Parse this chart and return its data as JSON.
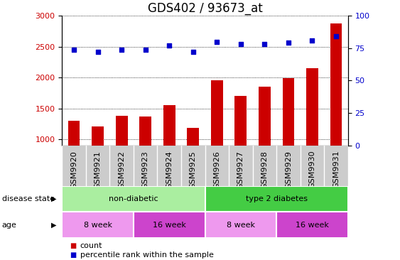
{
  "title": "GDS402 / 93673_at",
  "samples": [
    "GSM9920",
    "GSM9921",
    "GSM9922",
    "GSM9923",
    "GSM9924",
    "GSM9925",
    "GSM9926",
    "GSM9927",
    "GSM9928",
    "GSM9929",
    "GSM9930",
    "GSM9931"
  ],
  "counts": [
    1300,
    1210,
    1380,
    1365,
    1555,
    1185,
    1950,
    1700,
    1855,
    1990,
    2155,
    2870
  ],
  "percentiles": [
    74,
    72,
    74,
    74,
    77,
    72,
    80,
    78,
    78,
    79,
    81,
    84
  ],
  "ylim_left": [
    900,
    3000
  ],
  "ylim_right": [
    0,
    100
  ],
  "yticks_left": [
    1000,
    1500,
    2000,
    2500,
    3000
  ],
  "yticks_right": [
    0,
    25,
    50,
    75,
    100
  ],
  "bar_color": "#cc0000",
  "dot_color": "#0000cc",
  "bar_bottom": 900,
  "disease_state_labels": [
    "non-diabetic",
    "type 2 diabetes"
  ],
  "disease_state_ranges": [
    [
      0,
      5
    ],
    [
      6,
      11
    ]
  ],
  "disease_state_color_light": "#aaeea0",
  "disease_state_color_dark": "#44cc44",
  "age_labels": [
    "8 week",
    "16 week",
    "8 week",
    "16 week"
  ],
  "age_ranges": [
    [
      0,
      2
    ],
    [
      3,
      5
    ],
    [
      6,
      8
    ],
    [
      9,
      11
    ]
  ],
  "age_color_light": "#ee99ee",
  "age_color_dark": "#cc44cc",
  "tick_bg_color": "#cccccc",
  "background_color": "#ffffff",
  "left_label_color": "#cc0000",
  "right_label_color": "#0000cc",
  "title_fontsize": 12,
  "tick_fontsize": 8,
  "label_fontsize": 8
}
